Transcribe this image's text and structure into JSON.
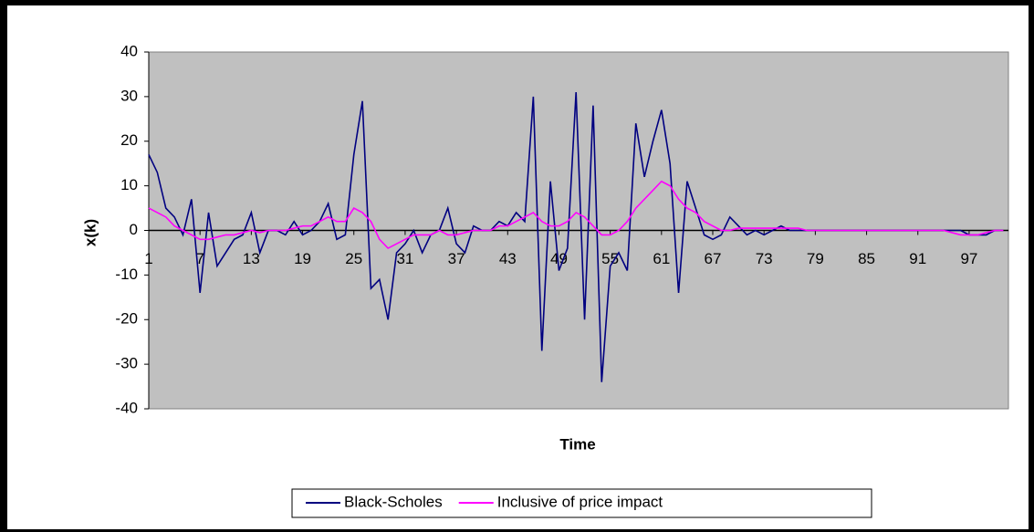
{
  "chart_data": {
    "type": "line",
    "x_label": "Time",
    "y_label": "x(k)",
    "x": [
      1,
      2,
      3,
      4,
      5,
      6,
      7,
      8,
      9,
      10,
      11,
      12,
      13,
      14,
      15,
      16,
      17,
      18,
      19,
      20,
      21,
      22,
      23,
      24,
      25,
      26,
      27,
      28,
      29,
      30,
      31,
      32,
      33,
      34,
      35,
      36,
      37,
      38,
      39,
      40,
      41,
      42,
      43,
      44,
      45,
      46,
      47,
      48,
      49,
      50,
      51,
      52,
      53,
      54,
      55,
      56,
      57,
      58,
      59,
      60,
      61,
      62,
      63,
      64,
      65,
      66,
      67,
      68,
      69,
      70,
      71,
      72,
      73,
      74,
      75,
      76,
      77,
      78,
      79,
      80,
      81,
      82,
      83,
      84,
      85,
      86,
      87,
      88,
      89,
      90,
      91,
      92,
      93,
      94,
      95,
      96,
      97,
      98,
      99,
      100,
      101
    ],
    "xlim": [
      1,
      101.6
    ],
    "xticks": [
      1,
      7,
      13,
      19,
      25,
      31,
      37,
      43,
      49,
      55,
      61,
      67,
      73,
      79,
      85,
      91,
      97
    ],
    "ylim": [
      -40,
      40
    ],
    "yticks": [
      -40,
      -30,
      -20,
      -10,
      0,
      10,
      20,
      30,
      40
    ],
    "legend": "bottom",
    "series": [
      {
        "name": "Black-Scholes",
        "color": "#000080",
        "values": [
          17,
          13,
          5,
          3,
          -1,
          7,
          -14,
          4,
          -8,
          -5,
          -2,
          -1,
          4,
          -5,
          0,
          0,
          -1,
          2,
          -1,
          0,
          2,
          6,
          -2,
          -1,
          17,
          29,
          -13,
          -11,
          -20,
          -5,
          -3,
          0,
          -5,
          -1,
          0,
          5,
          -3,
          -5,
          1,
          0,
          0,
          2,
          1,
          4,
          2,
          30,
          -27,
          11,
          -9,
          -4,
          31,
          -20,
          28,
          -34,
          -8,
          -5,
          -9,
          24,
          12,
          20,
          27,
          15,
          -14,
          11,
          5,
          -1,
          -2,
          -1,
          3,
          1,
          -1,
          0,
          -1,
          0,
          1,
          0,
          0,
          0,
          0,
          0,
          0,
          0,
          0,
          0,
          0,
          0,
          0,
          0,
          0,
          0,
          0,
          0,
          0,
          0,
          0,
          0,
          -1,
          -1,
          -1,
          0,
          0
        ]
      },
      {
        "name": "Inclusive of price impact",
        "color": "#ff00ff",
        "values": [
          5,
          4,
          3,
          1,
          0,
          -1,
          -2,
          -2,
          -1.5,
          -1,
          -1,
          -0.5,
          0,
          -0.5,
          0,
          0,
          0,
          0.5,
          1,
          1,
          2,
          3,
          2,
          2,
          5,
          4,
          2,
          -2,
          -4,
          -3,
          -2,
          -1,
          -1,
          -1,
          0,
          -1,
          -1,
          -0.5,
          0,
          0,
          0,
          1,
          1,
          2,
          3,
          4,
          2,
          1,
          1,
          2,
          4,
          3,
          1,
          -1,
          -1,
          0,
          2,
          5,
          7,
          9,
          11,
          10,
          7,
          5,
          4,
          2,
          1,
          0,
          0,
          0.5,
          0.5,
          0.5,
          0.5,
          0.5,
          0.5,
          0.5,
          0.5,
          0,
          0,
          0,
          0,
          0,
          0,
          0,
          0,
          0,
          0,
          0,
          0,
          0,
          0,
          0,
          0,
          0,
          -0.5,
          -1,
          -1,
          -1,
          -0.5,
          0,
          0
        ]
      }
    ]
  }
}
